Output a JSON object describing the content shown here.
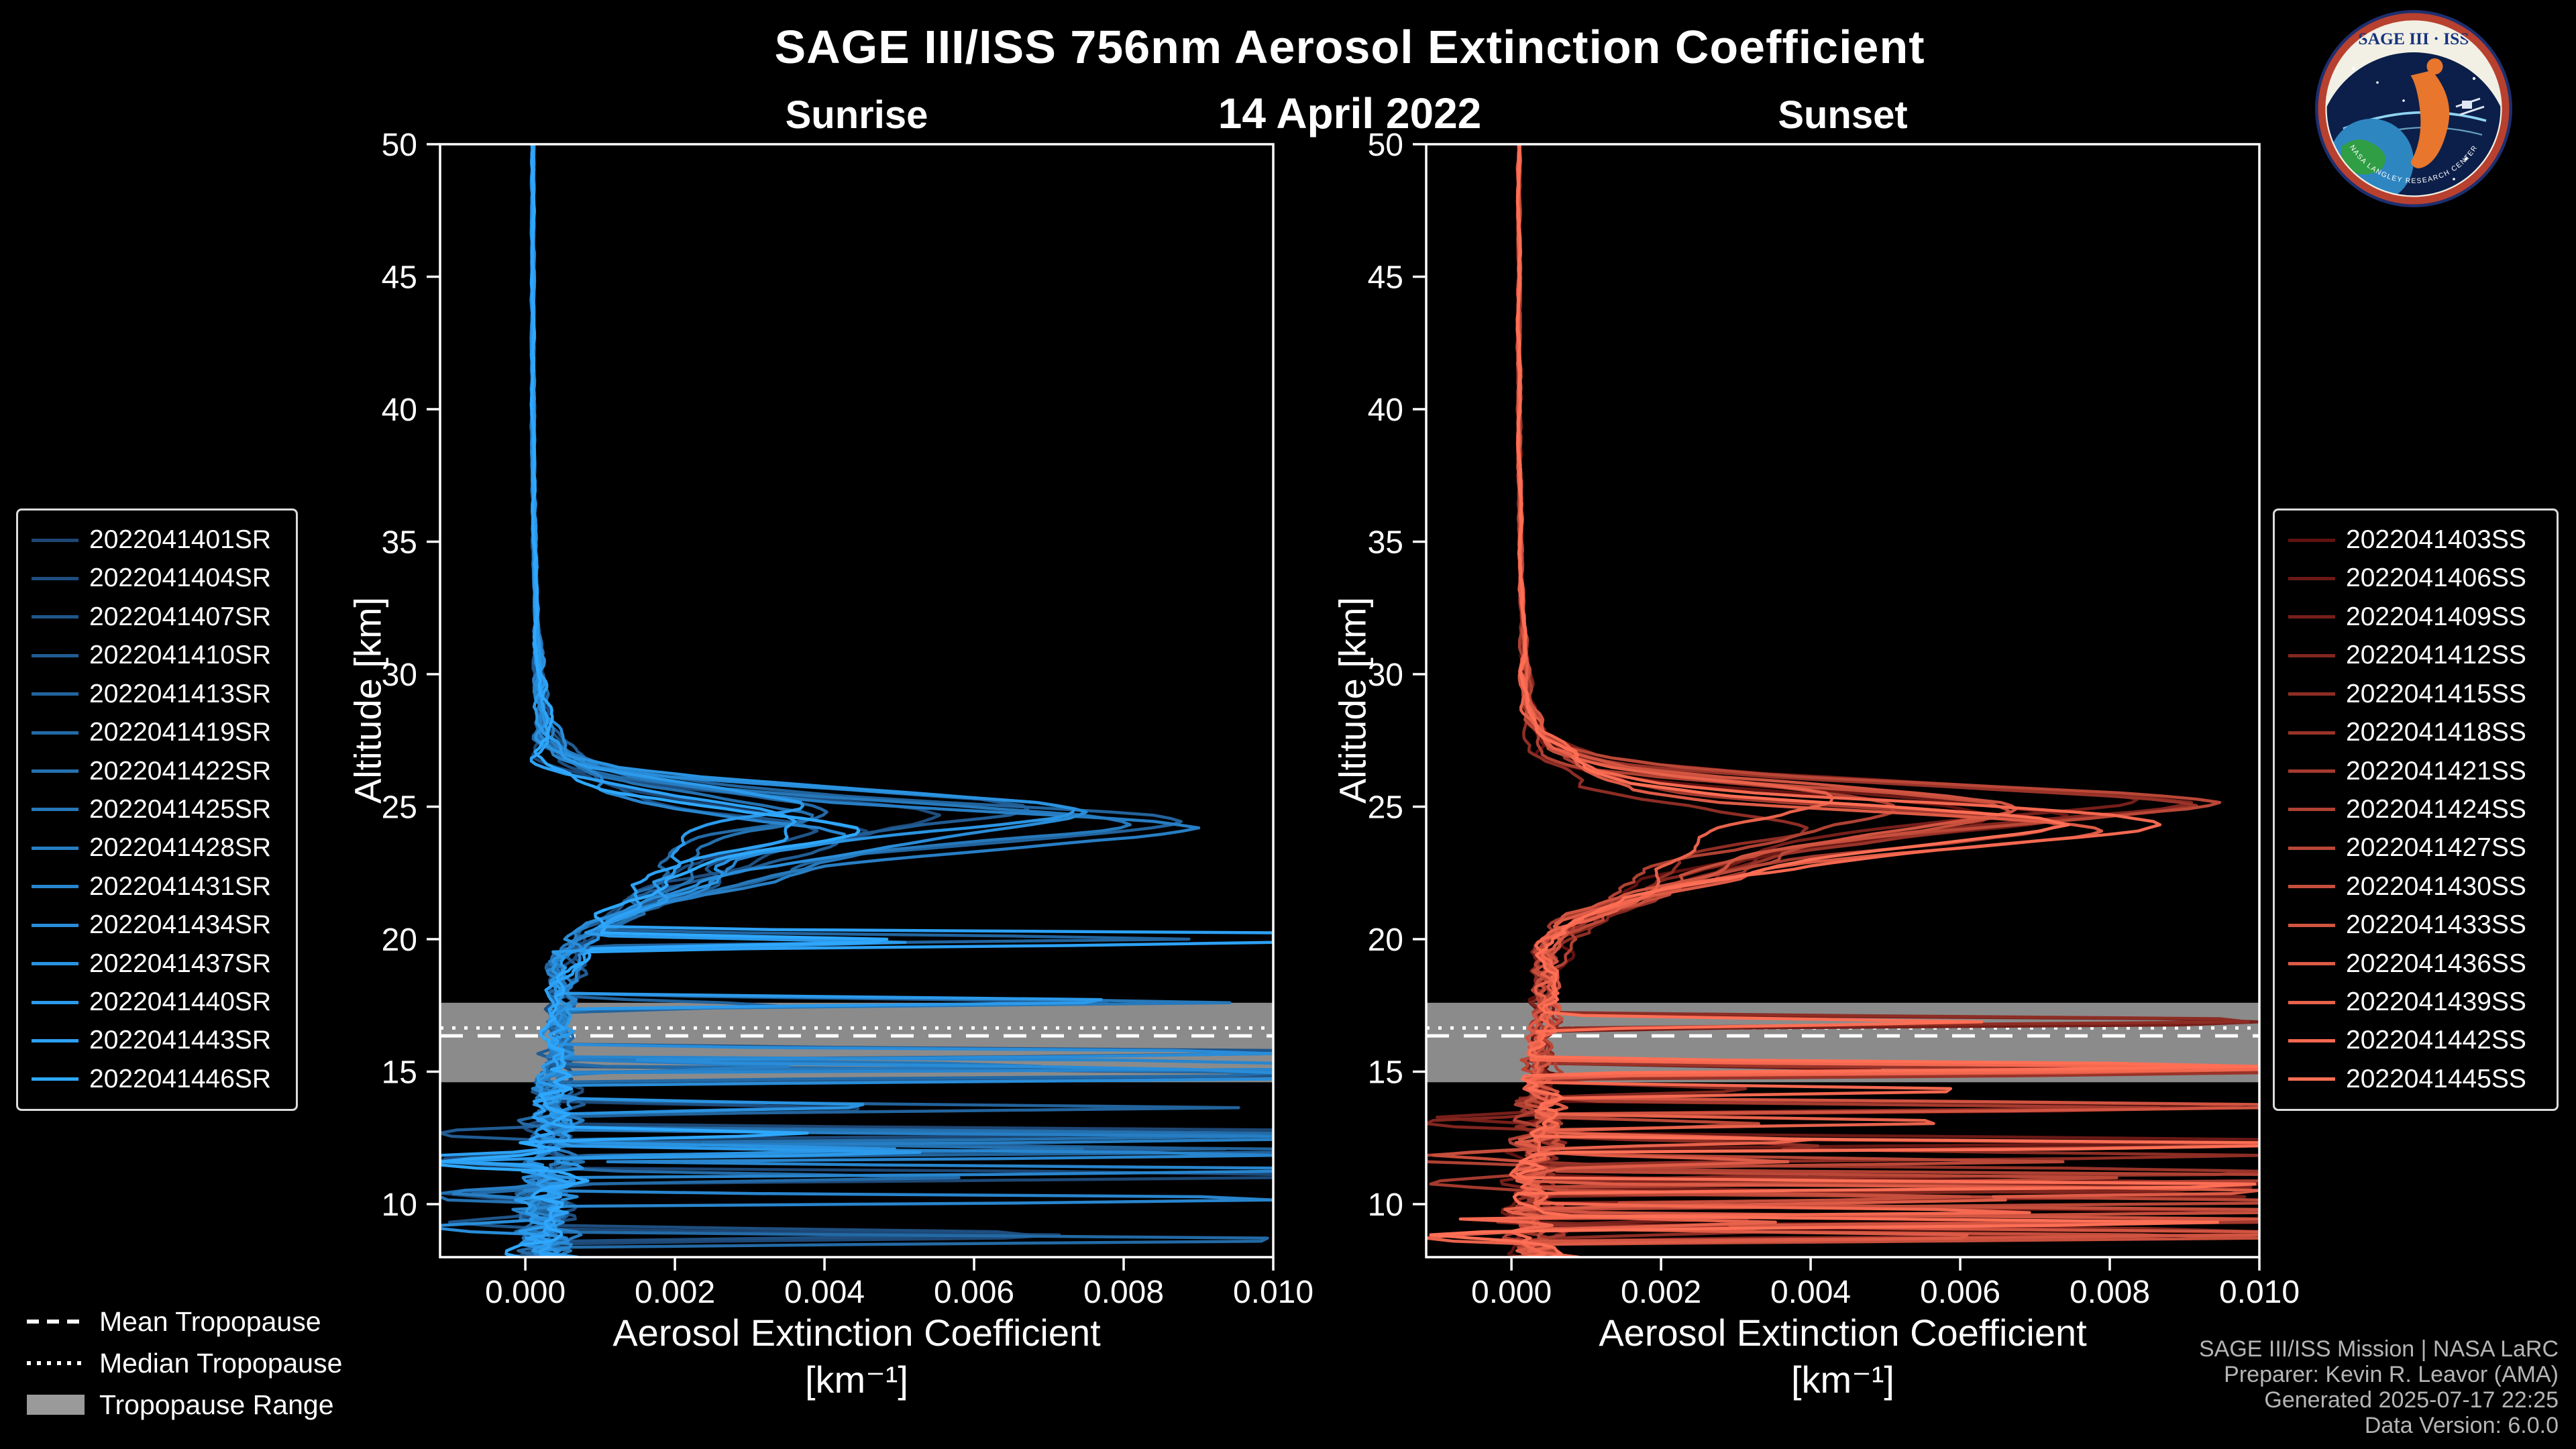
{
  "header": {
    "title": "SAGE III/ISS 756nm Aerosol Extinction Coefficient",
    "date": "14 April 2022"
  },
  "logo": {
    "title": "SAGE III · ISS",
    "ring_text": "NASA LANGLEY RESEARCH CENTER",
    "colors": {
      "ring": "#b8402e",
      "field": "#0c1f4a",
      "banner": "#f2efe4",
      "banner_text": "#16337e"
    }
  },
  "tropopause_legend": [
    {
      "label": "Mean Tropopause",
      "style": "dashed"
    },
    {
      "label": "Median Tropopause",
      "style": "dotted"
    },
    {
      "label": "Tropopause Range",
      "style": "band"
    }
  ],
  "footer": {
    "lines": [
      "SAGE III/ISS Mission | NASA LaRC",
      "Preparer: Kevin R. Leavor (AMA)",
      "Generated 2025-07-17 22:25",
      "Data Version: 6.0.0"
    ]
  },
  "chart_data": [
    {
      "type": "line",
      "title": "Sunrise",
      "xlabel": "Aerosol Extinction Coefficient",
      "xlabel_unit": "[km⁻¹]",
      "ylabel": "Altitude [km]",
      "xlim": [
        -0.00114,
        0.01
      ],
      "ylim": [
        8,
        50
      ],
      "xticks": [
        0.0,
        0.002,
        0.004,
        0.006,
        0.008,
        0.01
      ],
      "xtick_labels": [
        "0.000",
        "0.002",
        "0.004",
        "0.006",
        "0.008",
        "0.010"
      ],
      "yticks": [
        10,
        15,
        20,
        25,
        30,
        35,
        40,
        45,
        50
      ],
      "grid": false,
      "legend_position": "outside-left",
      "seed": 20220414,
      "colors": {
        "start": "#1d4775",
        "end": "#2ea8ff"
      },
      "series_names": [
        "2022041401SR",
        "2022041404SR",
        "2022041407SR",
        "2022041410SR",
        "2022041413SR",
        "2022041419SR",
        "2022041422SR",
        "2022041425SR",
        "2022041428SR",
        "2022041431SR",
        "2022041434SR",
        "2022041437SR",
        "2022041440SR",
        "2022041443SR",
        "2022041446SR"
      ],
      "mean_profile": {
        "altitude_km": [
          50,
          45,
          40,
          35,
          32,
          30,
          29,
          28,
          27.5,
          27,
          26.6,
          26.2,
          25.8,
          25.4,
          25.0,
          24.7,
          24.4,
          24.1,
          23.8,
          23.5,
          23.2,
          22.9,
          22.5,
          22.1,
          21.7,
          21.3,
          20.9,
          20.4,
          20.0,
          19.5,
          19.0,
          18.0,
          17.0,
          16.0,
          15.0,
          14.0,
          13.0,
          12.0,
          11.0,
          10.0,
          9.0,
          8.0
        ],
        "extinction_per_km": [
          0.0001,
          0.0001,
          0.0001,
          0.00012,
          0.00015,
          0.00018,
          0.00022,
          0.00028,
          0.00033,
          0.00045,
          0.0006,
          0.001,
          0.0018,
          0.003,
          0.0045,
          0.0056,
          0.006,
          0.0057,
          0.005,
          0.0043,
          0.0036,
          0.0031,
          0.00265,
          0.00225,
          0.0019,
          0.00155,
          0.00125,
          0.00095,
          0.00075,
          0.00062,
          0.00055,
          0.00048,
          0.00042,
          0.0004,
          0.00042,
          0.0004,
          0.00036,
          0.00034,
          0.00032,
          0.0003,
          0.00028,
          0.00026
        ]
      },
      "peak": {
        "altitude_km": 24.6,
        "max_extinction_per_km": 0.01
      },
      "cloud_spike_altitudes_km": [
        20.0,
        17.6,
        15.6,
        15.2,
        14.9,
        14.3,
        13.6,
        12.6,
        12.0,
        11.4,
        11.0,
        10.2,
        9.5,
        8.8
      ],
      "negative_spike_altitudes_km": [
        12.8,
        11.6,
        10.4,
        9.2,
        8.6
      ],
      "noise": {
        "altitudes": [
          50,
          32,
          28,
          26.5,
          25,
          23,
          21,
          20,
          18,
          16,
          14.5,
          13,
          11,
          9,
          8
        ],
        "smooth": [
          2e-05,
          3e-05,
          0.00015,
          0.0004,
          0.0006,
          0.0006,
          0.0004,
          0.00032,
          0.0002,
          0.00018,
          0.00022,
          0.00028,
          0.0003,
          0.00032,
          0.00034
        ],
        "jagged": [
          4e-06,
          1e-05,
          3e-05,
          6e-05,
          8e-05,
          8e-05,
          9e-05,
          0.0001,
          0.0001,
          0.00013,
          0.00022,
          0.0003,
          0.00035,
          0.0004,
          0.00042
        ]
      },
      "variation": {
        "peak_scale_min": 0.55,
        "peak_scale_max": 1.6,
        "peak_shift_km": 0.7,
        "peak_center_km": 24.6,
        "peak_window_km": 2.4,
        "spikes_min": 2,
        "spikes_max": 5,
        "spike_width_km": 0.28,
        "spike_mag_min": 0.003,
        "spike_mag_max": 0.016
      },
      "tropopause": {
        "mean_km": 16.35,
        "median_km": 16.65,
        "range_km": [
          14.6,
          17.6
        ]
      }
    },
    {
      "type": "line",
      "title": "Sunset",
      "xlabel": "Aerosol Extinction Coefficient",
      "xlabel_unit": "[km⁻¹]",
      "ylabel": "Altitude [km]",
      "xlim": [
        -0.00114,
        0.01
      ],
      "ylim": [
        8,
        50
      ],
      "xticks": [
        0.0,
        0.002,
        0.004,
        0.006,
        0.008,
        0.01
      ],
      "xtick_labels": [
        "0.000",
        "0.002",
        "0.004",
        "0.006",
        "0.008",
        "0.010"
      ],
      "yticks": [
        10,
        15,
        20,
        25,
        30,
        35,
        40,
        45,
        50
      ],
      "grid": false,
      "legend_position": "outside-right",
      "seed": 20220415,
      "colors": {
        "start": "#5f1210",
        "end": "#ff6f55"
      },
      "series_names": [
        "2022041403SS",
        "2022041406SS",
        "2022041409SS",
        "2022041412SS",
        "2022041415SS",
        "2022041418SS",
        "2022041421SS",
        "2022041424SS",
        "2022041427SS",
        "2022041430SS",
        "2022041433SS",
        "2022041436SS",
        "2022041439SS",
        "2022041442SS",
        "2022041445SS"
      ],
      "mean_profile": {
        "altitude_km": [
          50,
          45,
          40,
          35,
          32,
          30,
          29,
          28,
          27.5,
          27,
          26.6,
          26.2,
          25.8,
          25.4,
          25.0,
          24.7,
          24.4,
          24.1,
          23.8,
          23.5,
          23.2,
          22.9,
          22.5,
          22.1,
          21.7,
          21.3,
          20.9,
          20.4,
          20.0,
          19.5,
          19.0,
          18.0,
          17.0,
          16.0,
          15.0,
          14.0,
          13.0,
          12.0,
          11.0,
          10.0,
          9.0,
          8.0
        ],
        "extinction_per_km": [
          0.0001,
          0.0001,
          0.0001,
          0.00012,
          0.00015,
          0.00018,
          0.00024,
          0.00032,
          0.0004,
          0.00055,
          0.00085,
          0.0014,
          0.0024,
          0.004,
          0.0054,
          0.006,
          0.0058,
          0.0052,
          0.0045,
          0.0038,
          0.0032,
          0.00275,
          0.00235,
          0.002,
          0.00165,
          0.00135,
          0.00105,
          0.0008,
          0.00065,
          0.00056,
          0.0005,
          0.00044,
          0.0004,
          0.00038,
          0.0004,
          0.00038,
          0.00035,
          0.00033,
          0.00031,
          0.0003,
          0.00028,
          0.00026
        ]
      },
      "peak": {
        "altitude_km": 24.9,
        "max_extinction_per_km": 0.01
      },
      "cloud_spike_altitudes_km": [
        17.0,
        15.1,
        14.4,
        13.6,
        13.0,
        12.3,
        11.7,
        11.1,
        10.6,
        10.2,
        9.8,
        9.4,
        8.9
      ],
      "negative_spike_altitudes_km": [
        13.2,
        11.8,
        10.8,
        9.6,
        8.8
      ],
      "noise": {
        "altitudes": [
          50,
          32,
          28,
          26.5,
          25,
          23,
          21,
          20,
          18,
          16,
          14.5,
          13,
          11,
          9,
          8
        ],
        "smooth": [
          2e-05,
          3e-05,
          0.00015,
          0.0004,
          0.0006,
          0.0006,
          0.0004,
          0.00032,
          0.0002,
          0.00018,
          0.00022,
          0.00028,
          0.0003,
          0.00032,
          0.00034
        ],
        "jagged": [
          4e-06,
          1e-05,
          3e-05,
          6e-05,
          8e-05,
          8e-05,
          9e-05,
          0.0001,
          0.0001,
          0.00013,
          0.00022,
          0.0003,
          0.00035,
          0.0004,
          0.00042
        ]
      },
      "variation": {
        "peak_scale_min": 0.55,
        "peak_scale_max": 1.6,
        "peak_shift_km": 0.7,
        "peak_center_km": 24.9,
        "peak_window_km": 2.4,
        "spikes_min": 2,
        "spikes_max": 5,
        "spike_width_km": 0.28,
        "spike_mag_min": 0.003,
        "spike_mag_max": 0.016
      },
      "tropopause": {
        "mean_km": 16.35,
        "median_km": 16.65,
        "range_km": [
          14.6,
          17.6
        ]
      }
    }
  ]
}
